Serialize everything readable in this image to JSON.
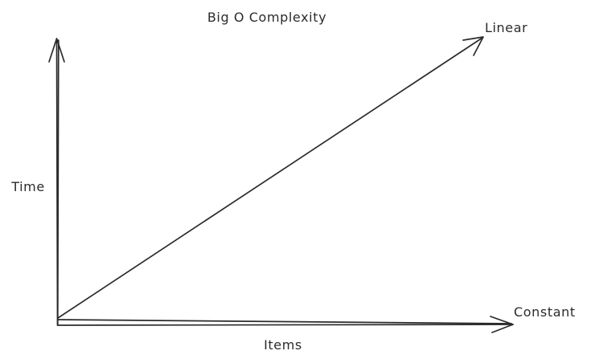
{
  "title": "Big O Complexity",
  "axes": {
    "y_label": "Time",
    "x_label": "Items"
  },
  "series": [
    {
      "label": "Linear"
    },
    {
      "label": "Constant"
    }
  ],
  "colors": {
    "ink": "#2b2b2b",
    "background": "#ffffff"
  }
}
